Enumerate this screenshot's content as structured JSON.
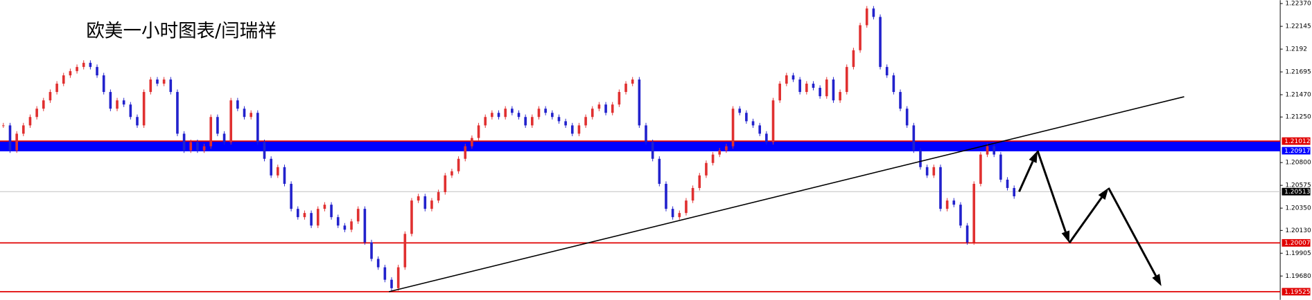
{
  "chart_data": {
    "type": "price",
    "title": "欧美一小时图表/闫瑞祥",
    "up_color": "#e03030",
    "down_color": "#2222cc",
    "series": [
      {
        "values": [
          1.21167,
          1.2092,
          1.21085,
          1.21167,
          1.2125,
          1.21332,
          1.21414,
          1.21497,
          1.21579,
          1.21661,
          1.21703,
          1.21744,
          1.21785,
          1.21744,
          1.21661,
          1.21497,
          1.21332,
          1.21414,
          1.21373,
          1.2125,
          1.21167,
          1.21497,
          1.2162,
          1.21579,
          1.2162,
          1.21497,
          1.21085,
          1.2092,
          1.21002,
          1.2092,
          1.20961,
          1.2125,
          1.21085,
          1.21002,
          1.21414,
          1.21332,
          1.2125,
          1.21291,
          1.21002,
          1.20837,
          1.20673,
          1.20755,
          1.2059,
          1.20343,
          1.20261,
          1.20302,
          1.20178,
          1.20343,
          1.20384,
          1.20261,
          1.20178,
          1.20137,
          1.20219,
          1.20343,
          1.20013,
          1.19849,
          1.19766,
          1.19643,
          1.1956,
          1.19766,
          1.20096,
          1.20425,
          1.20467,
          1.20343,
          1.20425,
          1.20508,
          1.20673,
          1.20714,
          1.20837,
          1.20961,
          1.21043,
          1.21167,
          1.2125,
          1.21291,
          1.2125,
          1.21332,
          1.21291,
          1.2125,
          1.21167,
          1.2125,
          1.21332,
          1.21291,
          1.2125,
          1.21208,
          1.21167,
          1.21085,
          1.21167,
          1.2125,
          1.21332,
          1.21373,
          1.21291,
          1.21373,
          1.21497,
          1.21579,
          1.2162,
          1.21167,
          1.21002,
          1.20837,
          1.2059,
          1.20343,
          1.20261,
          1.20302,
          1.20425,
          1.20549,
          1.20673,
          1.20796,
          1.20879,
          1.2092,
          1.20961,
          1.21332,
          1.21291,
          1.21208,
          1.21167,
          1.21085,
          1.21002,
          1.21414,
          1.21579,
          1.21661,
          1.2162,
          1.21497,
          1.21579,
          1.21538,
          1.21455,
          1.2162,
          1.21414,
          1.21497,
          1.21744,
          1.21909,
          1.22156,
          1.22321,
          1.22238,
          1.21744,
          1.21661,
          1.21497,
          1.21332,
          1.21167,
          1.2092,
          1.20755,
          1.20673,
          1.20755,
          1.20343,
          1.20425,
          1.20384,
          1.20178,
          1.20013,
          1.2059,
          1.20879,
          1.20961,
          1.20879,
          1.20631,
          1.20549,
          1.20467
        ]
      }
    ],
    "ylim": [
      1.19445,
      1.22403
    ],
    "yticks": [
      {
        "value": 1.2237,
        "label": "1.22370"
      },
      1.22145,
      1.2192,
      1.21695,
      {
        "value": 1.2147,
        "label": "1.21470"
      },
      {
        "value": 1.2125,
        "label": "1.21250"
      },
      {
        "value": 1.208,
        "label": "1.20800"
      },
      1.20575,
      {
        "value": 1.2035,
        "label": "1.20350"
      },
      {
        "value": 1.2013,
        "label": "1.20130"
      },
      1.19905,
      {
        "value": 1.1968,
        "label": "1.19680"
      }
    ],
    "levels": [
      {
        "price": 1.21012,
        "color": "#e00000"
      },
      {
        "price": 1.20917,
        "color": "#0000ff"
      },
      {
        "price": 1.20513,
        "color": "#000000"
      },
      {
        "price": 1.20007,
        "color": "#e00000"
      },
      {
        "price": 1.19525,
        "color": "#e00000"
      }
    ],
    "zone": {
      "from": 1.20917,
      "to": 1.21012,
      "color": "#0000ff"
    },
    "trendline": {
      "x": [
        57.6,
        176.4
      ],
      "y": [
        1.19525,
        1.2145
      ],
      "color": "#000000"
    },
    "projection": {
      "x": [
        151.75,
        154.5,
        159.25,
        165.1,
        173
      ],
      "y": [
        1.20513,
        1.20917,
        1.20007,
        1.2055,
        1.1958
      ],
      "color": "#000000"
    }
  }
}
